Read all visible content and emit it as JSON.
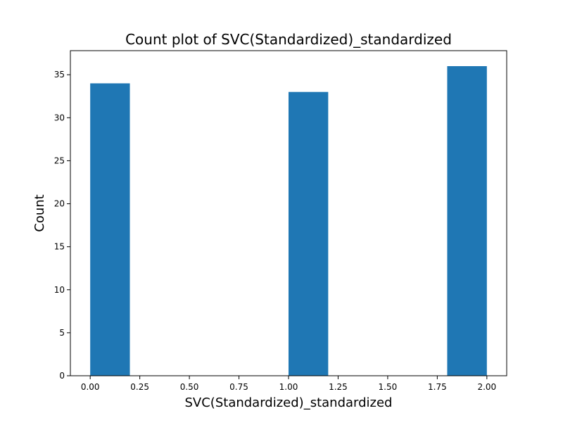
{
  "chart_data": {
    "type": "bar",
    "title": "Count plot of SVC(Standardized)_standardized",
    "xlabel": "SVC(Standardized)_standardized",
    "ylabel": "Count",
    "bars": [
      {
        "x_start": 0.0,
        "x_end": 0.2,
        "value": 34
      },
      {
        "x_start": 1.0,
        "x_end": 1.2,
        "value": 33
      },
      {
        "x_start": 1.8,
        "x_end": 2.0,
        "value": 36
      }
    ],
    "xlim": [
      -0.1,
      2.1
    ],
    "ylim": [
      0,
      37.8
    ],
    "x_ticks": [
      0.0,
      0.25,
      0.5,
      0.75,
      1.0,
      1.25,
      1.5,
      1.75,
      2.0
    ],
    "x_tick_labels": [
      "0.00",
      "0.25",
      "0.50",
      "0.75",
      "1.00",
      "1.25",
      "1.50",
      "1.75",
      "2.00"
    ],
    "y_ticks": [
      0,
      5,
      10,
      15,
      20,
      25,
      30,
      35
    ],
    "y_tick_labels": [
      "0",
      "5",
      "10",
      "15",
      "20",
      "25",
      "30",
      "35"
    ],
    "bar_color": "#1f77b4",
    "grid": false,
    "legend": "none"
  }
}
